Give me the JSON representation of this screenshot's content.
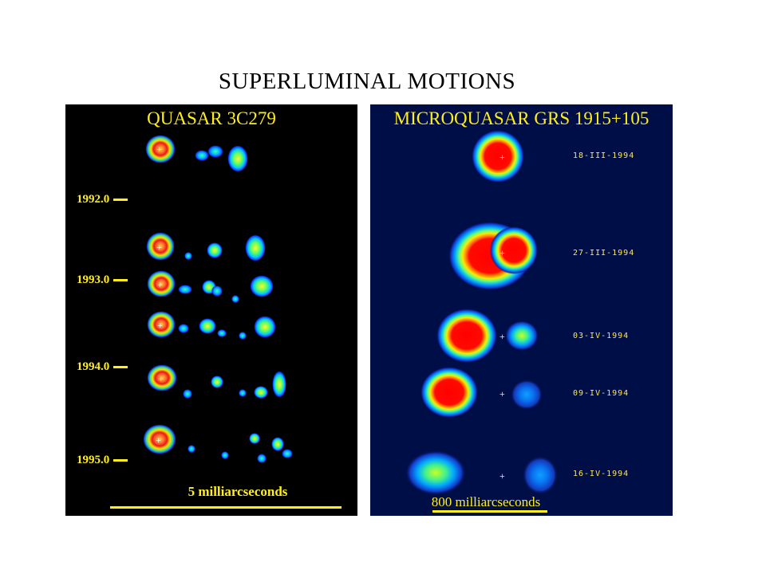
{
  "title": "SUPERLUMINAL MOTIONS",
  "left_panel": {
    "title": "QUASAR 3C279",
    "years": [
      "1992.0",
      "1993.0",
      "1994.0",
      "1995.0"
    ],
    "scale_label": "5 milliarcseconds"
  },
  "right_panel": {
    "title": "MICROQUASAR GRS 1915+105",
    "dates": [
      "18-III-1994",
      "27-III-1994",
      "03-IV-1994",
      "09-IV-1994",
      "16-IV-1994"
    ],
    "scale_label": "800 milliarcseconds"
  },
  "colors": {
    "label_yellow": "#ffee1a",
    "left_background": "#000000",
    "right_background": "#000e48"
  }
}
